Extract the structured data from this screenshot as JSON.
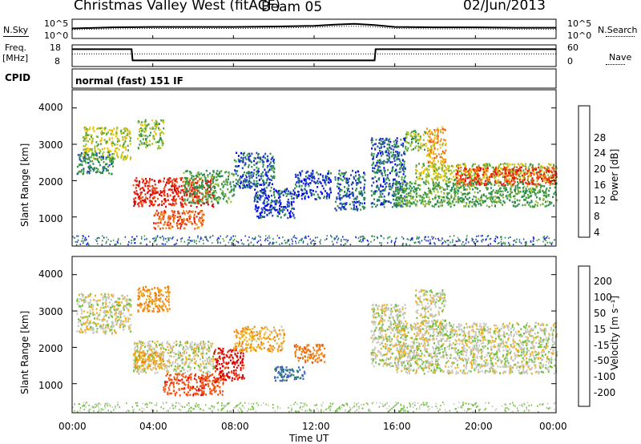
{
  "header": {
    "station": "Christmas Valley West (fitACF)",
    "beam": "Beam 05",
    "date": "02/Jun/2013"
  },
  "top_panels": {
    "nsky_label": "N.Sky",
    "nsearch_label": "N.Search",
    "noise_ticks_left": [
      "10^5",
      "10^0"
    ],
    "noise_ticks_right": [
      "10^5",
      "10^0"
    ],
    "freq_label_1": "Freq.",
    "freq_label_2": "[MHz]",
    "freq_ticks": [
      "18",
      "8"
    ],
    "nave_label": "Nave",
    "nave_ticks": [
      "60",
      "0"
    ],
    "cpid_label": "CPID",
    "cpid_value": "normal (fast) 151 IF"
  },
  "axes": {
    "xlabel": "Time UT",
    "x_ticks": [
      "00:00",
      "04:00",
      "08:00",
      "12:00",
      "16:00",
      "20:00",
      "00:00"
    ],
    "ylabel": "Slant Range [km]",
    "y_ticks": [
      "4000",
      "3000",
      "2000",
      "1000"
    ]
  },
  "colorbars": {
    "power": {
      "label": "Power [dB]",
      "ticks": [
        "28",
        "24",
        "20",
        "16",
        "12",
        "8",
        "4"
      ],
      "colors": [
        "#0000ff",
        "#2040c0",
        "#2a8a50",
        "#4aa040",
        "#a0c030",
        "#f0c000",
        "#f09020",
        "#f05010",
        "#e82010",
        "#e00000"
      ]
    },
    "velocity": {
      "label": "Velocity [m s⁻¹]",
      "ticks": [
        "200",
        "100",
        "50",
        "15",
        "-15",
        "-50",
        "-100",
        "-200"
      ],
      "colors": [
        "#1a2ad0",
        "#3a6ab0",
        "#2a8a40",
        "#70c040",
        "#c8c8c0",
        "#f0b020",
        "#f08010",
        "#f05010",
        "#e00000"
      ]
    }
  },
  "chart_data": [
    {
      "type": "line",
      "title": "N.Sky / N.Search",
      "x": [
        0,
        2,
        4,
        6,
        8,
        10,
        12,
        13,
        14,
        15,
        16,
        18,
        20,
        22,
        24
      ],
      "series": [
        {
          "name": "N.Sky",
          "values": [
            2.6,
            2.9,
            3.0,
            3.0,
            3.0,
            3.1,
            3.3,
            3.6,
            3.8,
            3.5,
            3.0,
            2.9,
            2.9,
            2.8,
            2.8
          ]
        },
        {
          "name": "N.Search",
          "values": [
            2.3,
            2.5,
            2.6,
            2.6,
            2.6,
            2.7,
            2.9,
            3.1,
            3.2,
            3.0,
            2.6,
            2.5,
            2.5,
            2.4,
            2.4
          ]
        }
      ],
      "ylim": [
        0,
        5
      ],
      "log_scale": true
    },
    {
      "type": "line",
      "title": "Freq. / Nave",
      "x": [
        0,
        2.95,
        3.0,
        15.0,
        15.05,
        24
      ],
      "series": [
        {
          "name": "Freq. [MHz]",
          "values": [
            16.0,
            16.0,
            10.8,
            10.8,
            16.0,
            16.0
          ]
        },
        {
          "name": "Nave",
          "values": [
            35,
            35,
            35,
            35,
            35,
            35
          ]
        }
      ],
      "ylim_freq": [
        8,
        18
      ],
      "ylim_nave": [
        0,
        60
      ]
    },
    {
      "type": "heatmap",
      "title": "Power [dB]",
      "xlabel": "Time UT",
      "ylabel": "Slant Range [km]",
      "xlim": [
        0,
        24
      ],
      "ylim": [
        200,
        4500
      ],
      "zlim": [
        0,
        30
      ],
      "regions": [
        {
          "t": [
            0.5,
            2.9
          ],
          "r": [
            2600,
            3500
          ],
          "p": 14
        },
        {
          "t": [
            0.2,
            2.0
          ],
          "r": [
            2200,
            2800
          ],
          "p": 8
        },
        {
          "t": [
            3.0,
            7.0
          ],
          "r": [
            1300,
            2100
          ],
          "p": 26
        },
        {
          "t": [
            4.0,
            6.5
          ],
          "r": [
            700,
            1200
          ],
          "p": 22
        },
        {
          "t": [
            3.2,
            4.5
          ],
          "r": [
            2900,
            3700
          ],
          "p": 12
        },
        {
          "t": [
            5.5,
            8.0
          ],
          "r": [
            1400,
            2300
          ],
          "p": 10
        },
        {
          "t": [
            8.0,
            10.0
          ],
          "r": [
            1800,
            2800
          ],
          "p": 6
        },
        {
          "t": [
            9.0,
            11.0
          ],
          "r": [
            1000,
            1800
          ],
          "p": 4
        },
        {
          "t": [
            11.0,
            12.8
          ],
          "r": [
            1500,
            2300
          ],
          "p": 4
        },
        {
          "t": [
            13.0,
            14.5
          ],
          "r": [
            1200,
            2300
          ],
          "p": 6
        },
        {
          "t": [
            14.8,
            16.5
          ],
          "r": [
            1300,
            3200
          ],
          "p": 6
        },
        {
          "t": [
            16.0,
            24.0
          ],
          "r": [
            1300,
            2000
          ],
          "p": 10
        },
        {
          "t": [
            17.0,
            24.0
          ],
          "r": [
            2000,
            2500
          ],
          "p": 14
        },
        {
          "t": [
            19.0,
            24.0
          ],
          "r": [
            1900,
            2400
          ],
          "p": 24
        },
        {
          "t": [
            17.5,
            18.5
          ],
          "r": [
            2500,
            3500
          ],
          "p": 18
        },
        {
          "t": [
            16.5,
            17.5
          ],
          "r": [
            2800,
            3400
          ],
          "p": 12
        }
      ]
    },
    {
      "type": "heatmap",
      "title": "Velocity [m s⁻¹]",
      "xlabel": "Time UT",
      "ylabel": "Slant Range [km]",
      "xlim": [
        0,
        24
      ],
      "ylim": [
        200,
        4500
      ],
      "zlim": [
        -250,
        250
      ],
      "regions": [
        {
          "t": [
            0.2,
            2.9
          ],
          "r": [
            2400,
            3500
          ],
          "v": 0
        },
        {
          "t": [
            3.0,
            7.0
          ],
          "r": [
            1300,
            2200
          ],
          "v": 0
        },
        {
          "t": [
            3.0,
            4.5
          ],
          "r": [
            1400,
            1900
          ],
          "v": -40
        },
        {
          "t": [
            4.5,
            7.5
          ],
          "r": [
            700,
            1300
          ],
          "v": -180
        },
        {
          "t": [
            7.0,
            8.5
          ],
          "r": [
            1100,
            2000
          ],
          "v": -220
        },
        {
          "t": [
            3.2,
            4.8
          ],
          "r": [
            3000,
            3700
          ],
          "v": -60
        },
        {
          "t": [
            8.0,
            10.5
          ],
          "r": [
            1900,
            2600
          ],
          "v": -40
        },
        {
          "t": [
            11.0,
            12.5
          ],
          "r": [
            1600,
            2100
          ],
          "v": -80
        },
        {
          "t": [
            10.0,
            11.5
          ],
          "r": [
            1100,
            1500
          ],
          "v": 120
        },
        {
          "t": [
            14.8,
            16.5
          ],
          "r": [
            1500,
            3200
          ],
          "v": 0
        },
        {
          "t": [
            16.0,
            24.0
          ],
          "r": [
            1300,
            2700
          ],
          "v": 0
        },
        {
          "t": [
            17.0,
            18.5
          ],
          "r": [
            2500,
            3600
          ],
          "v": 0
        }
      ]
    }
  ]
}
